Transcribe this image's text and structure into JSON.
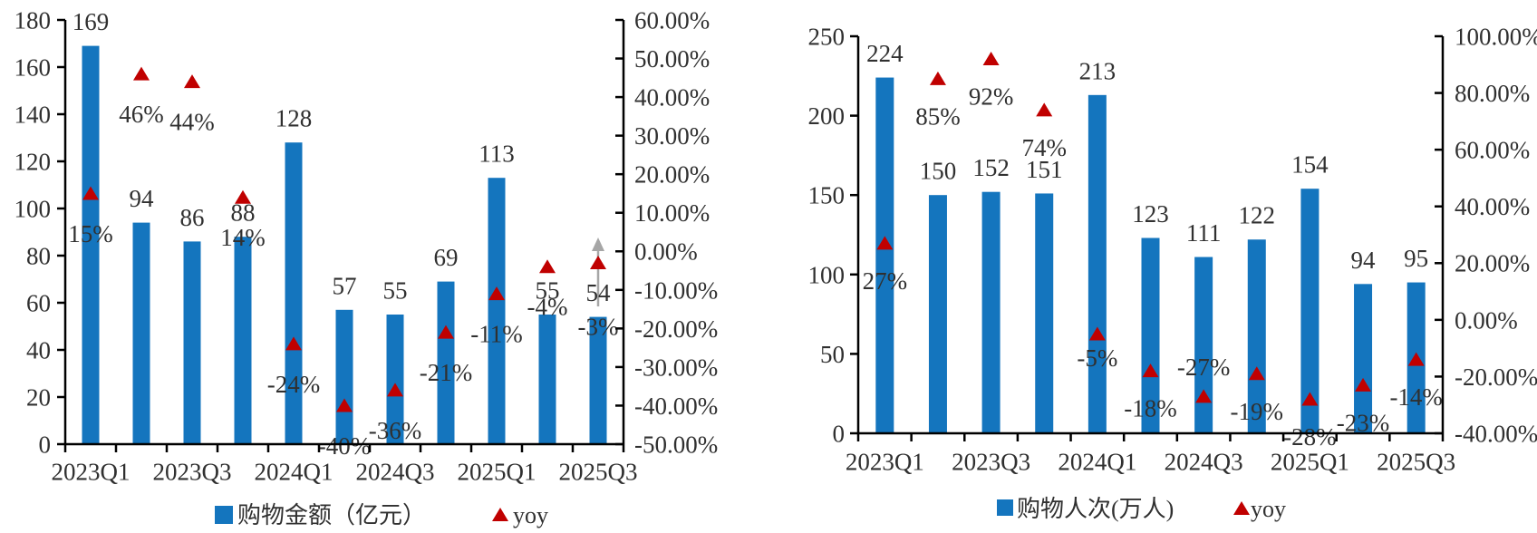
{
  "page": {
    "background": "#ffffff",
    "text_color": "#303030",
    "axis_color": "#000000"
  },
  "chart_data": [
    {
      "id": "shopping-amount",
      "type": "combo-bar-scatter",
      "title": "",
      "categories": [
        "2023Q1",
        "2023Q2",
        "2023Q3",
        "2023Q4",
        "2024Q1",
        "2024Q2",
        "2024Q3",
        "2024Q4",
        "2025Q1",
        "2025Q2",
        "2025Q3"
      ],
      "x_axis": {
        "tick_labels": [
          "2023Q1",
          "2023Q3",
          "2024Q1",
          "2024Q3",
          "2025Q1",
          "2025Q3"
        ],
        "label_every": 2
      },
      "bar_series": {
        "name": "购物金额（亿元）",
        "color": "#1475BE",
        "values": [
          169,
          94,
          86,
          88,
          128,
          57,
          55,
          69,
          113,
          55,
          54
        ],
        "data_labels": [
          "169",
          "94",
          "86",
          "88",
          "128",
          "57",
          "55",
          "69",
          "113",
          "55",
          "54"
        ]
      },
      "yoy_series": {
        "name": "yoy",
        "color": "#C00000",
        "marker": "triangle",
        "values_percent": [
          15,
          46,
          44,
          14,
          -24,
          -40,
          -36,
          -21,
          -11,
          -4,
          -3
        ],
        "data_labels": [
          "15%",
          "46%",
          "44%",
          "14%",
          "-24%",
          "-40%",
          "-36%",
          "-21%",
          "-11%",
          "-4%",
          "-3%"
        ]
      },
      "left_axis": {
        "min": 0,
        "max": 180,
        "step": 20,
        "tick_labels": [
          "0",
          "20",
          "40",
          "60",
          "80",
          "100",
          "120",
          "140",
          "160",
          "180"
        ]
      },
      "right_axis": {
        "min": -50,
        "max": 60,
        "step": 10,
        "tick_labels": [
          "-50.00%",
          "-40.00%",
          "-30.00%",
          "-20.00%",
          "-10.00%",
          "0.00%",
          "10.00%",
          "20.00%",
          "30.00%",
          "40.00%",
          "50.00%",
          "60.00%"
        ]
      },
      "legend": [
        {
          "swatch": "square",
          "color": "#1475BE",
          "label": "购物金额（亿元）"
        },
        {
          "swatch": "triangle",
          "color": "#C00000",
          "label": "yoy"
        }
      ],
      "annotations": [
        {
          "type": "up-arrow",
          "category_index": 10,
          "color": "#A6A6A6"
        }
      ],
      "layout_hints": {
        "grid": "off",
        "legend_position": "bottom",
        "yoy_label_dy": 44,
        "yoy_label_dy_overrides": {
          "10": 70
        }
      }
    },
    {
      "id": "shopping-visits",
      "type": "combo-bar-scatter",
      "title": "",
      "categories": [
        "2023Q1",
        "2023Q2",
        "2023Q3",
        "2023Q4",
        "2024Q1",
        "2024Q2",
        "2024Q3",
        "2024Q4",
        "2025Q1",
        "2025Q2",
        "2025Q3"
      ],
      "x_axis": {
        "tick_labels": [
          "2023Q1",
          "2023Q3",
          "2024Q1",
          "2024Q3",
          "2025Q1",
          "2025Q3"
        ],
        "label_every": 2
      },
      "bar_series": {
        "name": "购物人次(万人)",
        "color": "#1475BE",
        "values": [
          224,
          150,
          152,
          151,
          213,
          123,
          111,
          122,
          154,
          94,
          95
        ],
        "data_labels": [
          "224",
          "150",
          "152",
          "151",
          "213",
          "123",
          "111",
          "122",
          "154",
          "94",
          "95"
        ]
      },
      "yoy_series": {
        "name": "yoy",
        "color": "#C00000",
        "marker": "triangle",
        "values_percent": [
          27,
          85,
          92,
          74,
          -5,
          -18,
          -27,
          -19,
          -28,
          -23,
          -14
        ],
        "data_labels": [
          "27%",
          "85%",
          "92%",
          "74%",
          "-5%",
          "-18%",
          "-27%",
          "-19%",
          "-28%",
          "-23%",
          "-14%"
        ]
      },
      "left_axis": {
        "min": 0,
        "max": 250,
        "step": 50,
        "tick_labels": [
          "0",
          "50",
          "100",
          "150",
          "200",
          "250"
        ]
      },
      "right_axis": {
        "min": -40,
        "max": 100,
        "step": 20,
        "tick_labels": [
          "-40.00%",
          "-20.00%",
          "0.00%",
          "20.00%",
          "40.00%",
          "60.00%",
          "80.00%",
          "100.00%"
        ]
      },
      "legend": [
        {
          "swatch": "square",
          "color": "#1475BE",
          "label": "购物人次(万人)"
        },
        {
          "swatch": "triangle",
          "color": "#C00000",
          "label": "yoy"
        }
      ],
      "annotations": [],
      "layout_hints": {
        "grid": "off",
        "legend_position": "bottom",
        "yoy_label_dy": 41,
        "yoy_label_dy_overrides": {
          "4": 26,
          "6": -33
        }
      }
    }
  ]
}
